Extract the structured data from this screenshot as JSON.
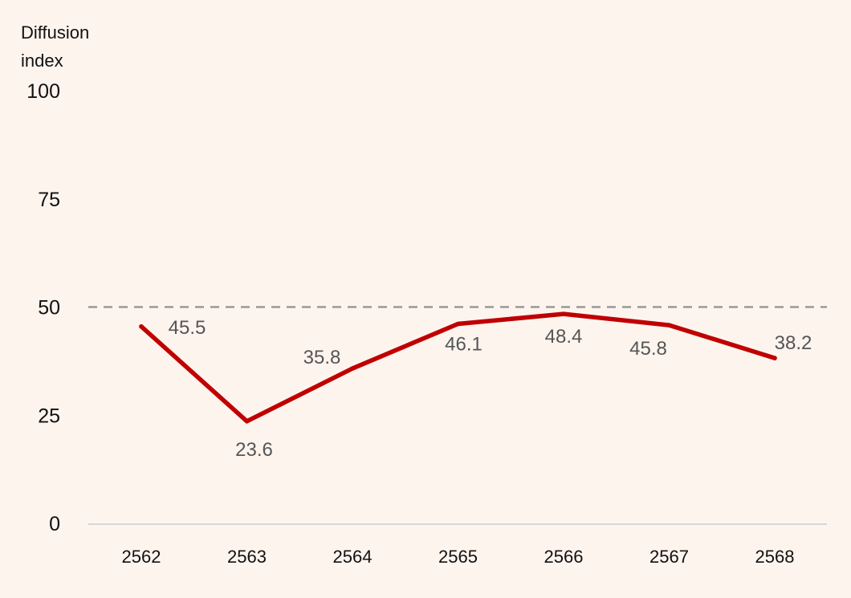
{
  "chart_data": {
    "type": "line",
    "title": "",
    "ylabel_lines": [
      "Diffusion",
      "index"
    ],
    "xlabel": "",
    "categories": [
      "2562",
      "2563",
      "2564",
      "2565",
      "2566",
      "2567",
      "2568"
    ],
    "series": [
      {
        "name": "Diffusion index",
        "values": [
          45.5,
          23.6,
          35.8,
          46.1,
          48.4,
          45.8,
          38.2
        ],
        "color": "#c00000"
      }
    ],
    "ylim": [
      0,
      100
    ],
    "yticks": [
      0,
      25,
      50,
      75,
      100
    ],
    "reference_line": {
      "value": 50,
      "style": "dashed",
      "color": "#999999"
    },
    "baseline_color": "#d6d6d6",
    "grid": false
  }
}
